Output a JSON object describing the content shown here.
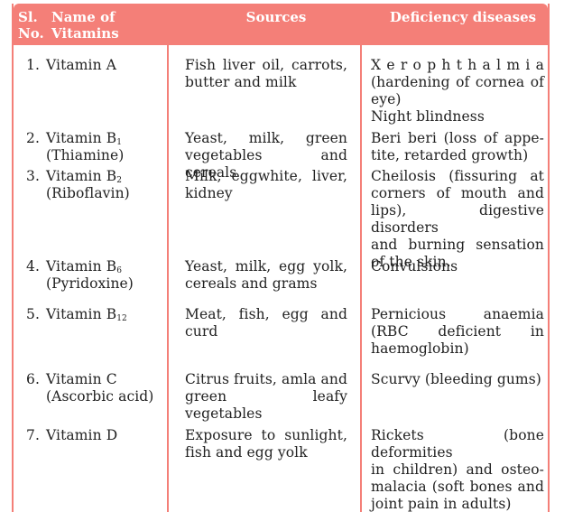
{
  "header": {
    "sl_label": "Sl.",
    "no_label": "No.",
    "name_label": "Name of",
    "vitamins_label": "Vitamins",
    "sources_label": "Sources",
    "deficiency_label": "Deficiency diseases"
  },
  "rows": [
    {
      "num": "1.",
      "vitamin_main": "Vitamin A",
      "vitamin_sub": "",
      "vitamin_alt": "",
      "sources": [
        "Fish liver oil, carrots,",
        "butter and milk"
      ],
      "deficiency": [
        "X e r o p h t h a l m i a",
        "(hardening of cornea of",
        "eye)",
        "Night blindness"
      ]
    },
    {
      "num": "2.",
      "vitamin_main": "Vitamin B",
      "vitamin_sub": "1",
      "vitamin_alt": "(Thiamine)",
      "sources": [
        "Yeast, milk, green",
        "vegetables and cereals"
      ],
      "deficiency": [
        "Beri beri (loss of appe-",
        "tite, retarded growth)"
      ]
    },
    {
      "num": "3.",
      "vitamin_main": "Vitamin B",
      "vitamin_sub": "2",
      "vitamin_alt": "(Riboflavin)",
      "sources": [
        "Milk, eggwhite, liver,",
        "kidney"
      ],
      "deficiency": [
        "Cheilosis (fissuring at",
        "corners of mouth and",
        "lips), digestive disorders",
        "and burning sensation",
        "of the skin."
      ]
    },
    {
      "num": "4.",
      "vitamin_main": "Vitamin B",
      "vitamin_sub": "6",
      "vitamin_alt": "(Pyridoxine)",
      "sources": [
        "Yeast, milk, egg yolk,",
        "cereals and grams"
      ],
      "deficiency": [
        "Convulsions"
      ]
    },
    {
      "num": "5.",
      "vitamin_main": "Vitamin B",
      "vitamin_sub": "12",
      "vitamin_alt": "",
      "sources": [
        "Meat, fish, egg and",
        "curd"
      ],
      "deficiency": [
        "Pernicious anaemia",
        "(RBC deficient in",
        "haemoglobin)"
      ]
    },
    {
      "num": "6.",
      "vitamin_main": "Vitamin C",
      "vitamin_sub": "",
      "vitamin_alt": "(Ascorbic acid)",
      "sources": [
        "Citrus fruits, amla and",
        "green leafy vegetables"
      ],
      "deficiency": [
        "Scurvy (bleeding gums)"
      ]
    },
    {
      "num": "7.",
      "vitamin_main": "Vitamin D",
      "vitamin_sub": "",
      "vitamin_alt": "",
      "sources": [
        "Exposure to sunlight,",
        "fish and egg yolk"
      ],
      "deficiency": [
        "Rickets (bone deformities",
        "in children) and osteo-",
        "malacia (soft bones and",
        "joint pain in adults)"
      ]
    }
  ],
  "colors": {
    "accent": "#f47f78",
    "header_text": "#ffffff",
    "body_text": "#222222"
  }
}
